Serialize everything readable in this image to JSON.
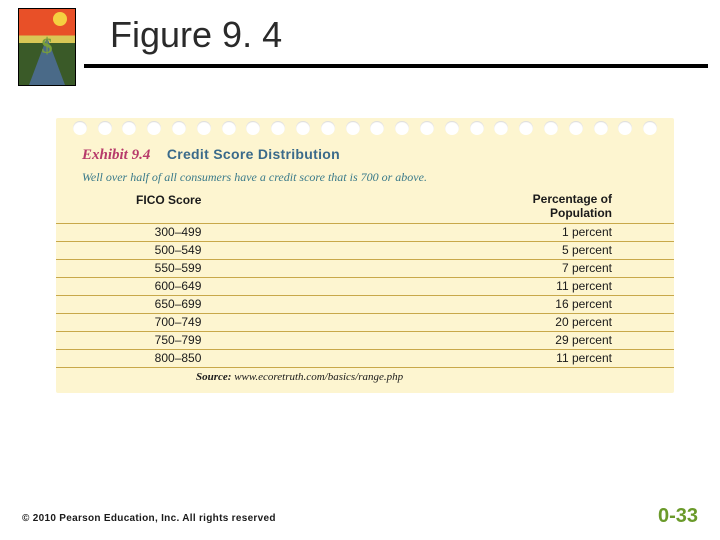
{
  "slide": {
    "title": "Figure 9. 4",
    "logo_name": "road-sunset-dollar-logo"
  },
  "exhibit": {
    "label": "Exhibit 9.4",
    "title": "Credit Score Distribution",
    "subtitle": "Well over half of all consumers have a credit score that is 700 or above.",
    "columns": {
      "score": "FICO Score",
      "pct_line1": "Percentage of",
      "pct_line2": "Population"
    },
    "rows": [
      {
        "score": "300–499",
        "pct": "1 percent"
      },
      {
        "score": "500–549",
        "pct": "5 percent"
      },
      {
        "score": "550–599",
        "pct": "7 percent"
      },
      {
        "score": "600–649",
        "pct": "11 percent"
      },
      {
        "score": "650–699",
        "pct": "16 percent"
      },
      {
        "score": "700–749",
        "pct": "20 percent"
      },
      {
        "score": "750–799",
        "pct": "29 percent"
      },
      {
        "score": "800–850",
        "pct": "11 percent"
      }
    ],
    "source_label": "Source:",
    "source_text": "www.ecoretruth.com/basics/range.php",
    "binding_holes": 24,
    "colors": {
      "card_bg": "#fdf5d0",
      "rule": "#c8a84a",
      "label": "#b73a6a",
      "title": "#3a6a8a",
      "subtitle": "#3a7a8a"
    }
  },
  "footer": {
    "copyright": "© 2010 Pearson Education, Inc. All rights reserved",
    "page": "0-33",
    "page_color": "#6a9a2a"
  }
}
